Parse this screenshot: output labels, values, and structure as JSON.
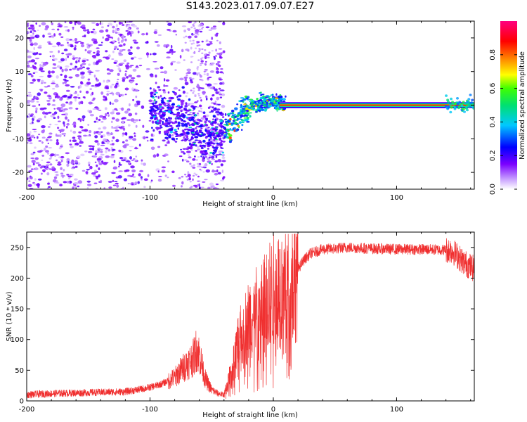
{
  "title": "S143.2023.017.09.07.E27",
  "colors": {
    "snr_line": "#f03030",
    "scatter_dark": "#5a10e0",
    "scatter_light": "#d8c4f8",
    "background": "#ffffff"
  },
  "colorbar": {
    "label": "Normalized spectral amplitude",
    "ticks": [
      "0.0",
      "0.2",
      "0.4",
      "0.6",
      "0.8"
    ],
    "tick_values": [
      0.0,
      0.2,
      0.4,
      0.6,
      0.8
    ],
    "range": [
      0,
      1
    ],
    "colormap": "rainbow (white-purple-blue-cyan-green-yellow-orange-red-magenta)"
  },
  "chart_data": [
    {
      "type": "heatmap",
      "title": "",
      "xlabel": "Height of straight line (km)",
      "ylabel": "Frequency (Hz)",
      "xlim": [
        -200,
        163
      ],
      "ylim": [
        -25,
        25
      ],
      "x_ticks": [
        "-200",
        "-100",
        "0",
        "100"
      ],
      "x_tick_values": [
        -200,
        -100,
        0,
        100
      ],
      "y_ticks": [
        "20",
        "10",
        "0",
        "-10",
        "-20"
      ],
      "y_tick_values": [
        20,
        10,
        0,
        -10,
        -20
      ],
      "grid": false,
      "description_regions": [
        {
          "x_range": [
            -200,
            -100
          ],
          "y_range": [
            -25,
            25
          ],
          "amplitude": 0.1
        },
        {
          "x_range": [
            -100,
            -40
          ],
          "y_range": [
            -14,
            6
          ],
          "amplitude": 0.2
        },
        {
          "x_range": [
            -40,
            10
          ],
          "y_range": [
            -8,
            4
          ],
          "amplitude": 0.5
        },
        {
          "x_range": [
            10,
            163
          ],
          "y_range": [
            -0.5,
            0.5
          ],
          "amplitude": 0.95
        }
      ],
      "ridge": {
        "x": [
          -95,
          -80,
          -65,
          -55,
          -45,
          -35,
          -25,
          -15,
          -5,
          5,
          10,
          50,
          100,
          145,
          163
        ],
        "y": [
          -1,
          -4,
          -7,
          -9,
          -8,
          -6,
          -2,
          0,
          1,
          1,
          0,
          0,
          0,
          0,
          0
        ]
      }
    },
    {
      "type": "line",
      "title": "",
      "xlabel": "Height of straight line (km)",
      "ylabel": "SNR (10 * v/v)",
      "xlim": [
        -200,
        163
      ],
      "ylim": [
        0,
        275
      ],
      "x_ticks": [
        "-200",
        "-100",
        "0",
        "100"
      ],
      "x_tick_values": [
        -200,
        -100,
        0,
        100
      ],
      "y_ticks": [
        "250",
        "200",
        "150",
        "100",
        "50",
        "0"
      ],
      "y_tick_values": [
        250,
        200,
        150,
        100,
        50,
        0
      ],
      "grid": false,
      "series": [
        {
          "x": [
            -200,
            -180,
            -160,
            -140,
            -120,
            -110,
            -100,
            -90,
            -80,
            -75,
            -70,
            -65,
            -62,
            -60,
            -55,
            -50,
            -45,
            -40,
            -35,
            -30,
            -25,
            -20,
            -15,
            -10,
            -5,
            0,
            5,
            10,
            15,
            20,
            25,
            30,
            40,
            50,
            60,
            80,
            100,
            120,
            140,
            145,
            150,
            155,
            163
          ],
          "y": [
            10,
            12,
            13,
            14,
            15,
            18,
            22,
            28,
            38,
            50,
            60,
            70,
            85,
            75,
            35,
            18,
            12,
            10,
            40,
            80,
            110,
            130,
            140,
            150,
            165,
            175,
            185,
            190,
            200,
            215,
            230,
            240,
            247,
            248,
            250,
            248,
            247,
            247,
            246,
            245,
            235,
            225,
            215
          ]
        }
      ]
    }
  ]
}
